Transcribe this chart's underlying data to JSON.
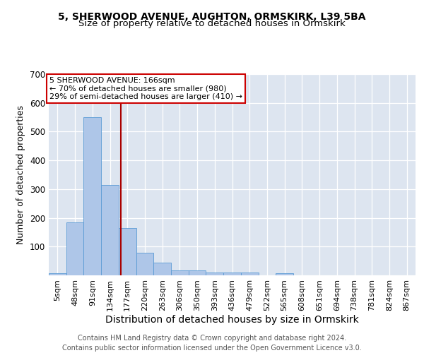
{
  "title1": "5, SHERWOOD AVENUE, AUGHTON, ORMSKIRK, L39 5BA",
  "title2": "Size of property relative to detached houses in Ormskirk",
  "xlabel": "Distribution of detached houses by size in Ormskirk",
  "ylabel": "Number of detached properties",
  "bar_labels": [
    "5sqm",
    "48sqm",
    "91sqm",
    "134sqm",
    "177sqm",
    "220sqm",
    "263sqm",
    "306sqm",
    "350sqm",
    "393sqm",
    "436sqm",
    "479sqm",
    "522sqm",
    "565sqm",
    "608sqm",
    "651sqm",
    "694sqm",
    "738sqm",
    "781sqm",
    "824sqm",
    "867sqm"
  ],
  "bar_heights": [
    8,
    185,
    550,
    315,
    165,
    78,
    43,
    17,
    17,
    10,
    10,
    10,
    0,
    7,
    0,
    0,
    0,
    0,
    0,
    0,
    0
  ],
  "bar_color": "#aec6e8",
  "bar_edgecolor": "#5b9bd5",
  "background_color": "#dde5f0",
  "grid_color": "#ffffff",
  "vline_x_index": 3.62,
  "vline_color": "#aa0000",
  "annotation_line1": "5 SHERWOOD AVENUE: 166sqm",
  "annotation_line2": "← 70% of detached houses are smaller (980)",
  "annotation_line3": "29% of semi-detached houses are larger (410) →",
  "annotation_box_color": "#cc0000",
  "ylim": [
    0,
    700
  ],
  "yticks": [
    0,
    100,
    200,
    300,
    400,
    500,
    600,
    700
  ],
  "footer_line1": "Contains HM Land Registry data © Crown copyright and database right 2024.",
  "footer_line2": "Contains public sector information licensed under the Open Government Licence v3.0.",
  "title1_fontsize": 10,
  "title2_fontsize": 9.5,
  "xlabel_fontsize": 10,
  "ylabel_fontsize": 9,
  "tick_fontsize": 8,
  "footer_fontsize": 7,
  "annot_fontsize": 8
}
